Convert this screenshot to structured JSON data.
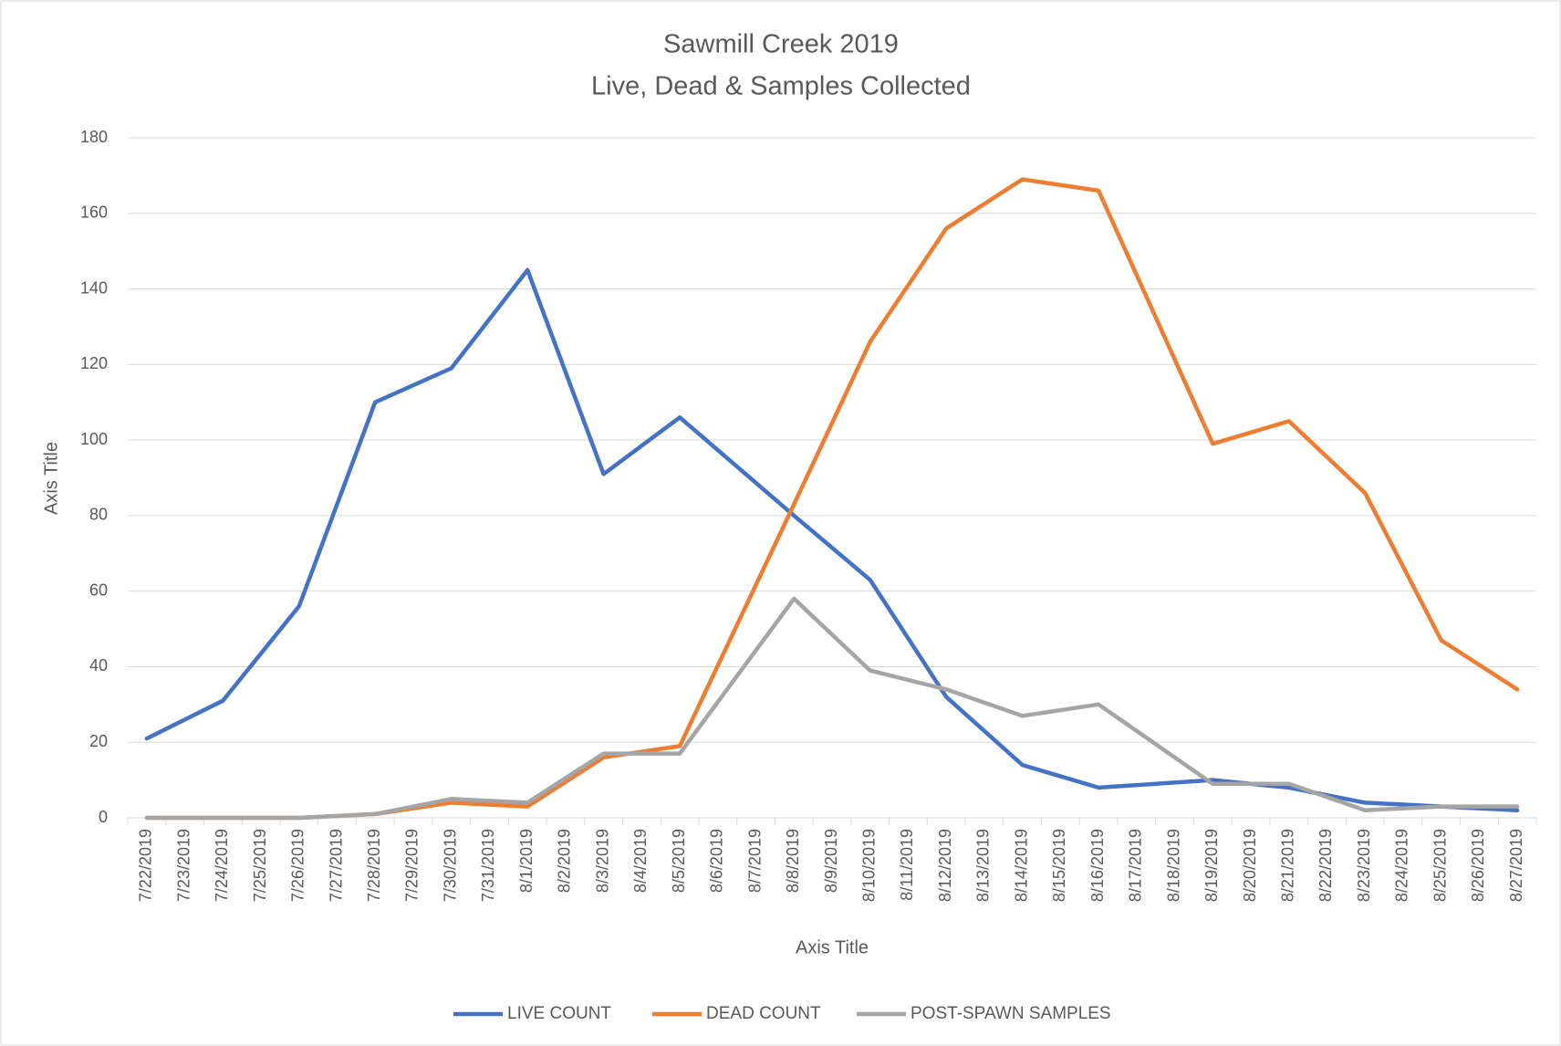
{
  "chart_data": {
    "type": "line",
    "title": "Sawmill Creek 2019",
    "subtitle": "Live, Dead & Samples Collected",
    "x_label": "Axis Title",
    "y_label": "Axis Title",
    "categories": [
      "7/22/2019",
      "7/23/2019",
      "7/24/2019",
      "7/25/2019",
      "7/26/2019",
      "7/27/2019",
      "7/28/2019",
      "7/29/2019",
      "7/30/2019",
      "7/31/2019",
      "8/1/2019",
      "8/2/2019",
      "8/3/2019",
      "8/4/2019",
      "8/5/2019",
      "8/6/2019",
      "8/7/2019",
      "8/8/2019",
      "8/9/2019",
      "8/10/2019",
      "8/11/2019",
      "8/12/2019",
      "8/13/2019",
      "8/14/2019",
      "8/15/2019",
      "8/16/2019",
      "8/17/2019",
      "8/18/2019",
      "8/19/2019",
      "8/20/2019",
      "8/21/2019",
      "8/22/2019",
      "8/23/2019",
      "8/24/2019",
      "8/25/2019",
      "8/26/2019",
      "8/27/2019"
    ],
    "series": [
      {
        "name": "LIVE COUNT",
        "color": "#4472c4",
        "x": [
          "7/22/2019",
          "7/24/2019",
          "7/26/2019",
          "7/28/2019",
          "7/30/2019",
          "8/1/2019",
          "8/3/2019",
          "8/5/2019",
          "8/8/2019",
          "8/10/2019",
          "8/12/2019",
          "8/14/2019",
          "8/16/2019",
          "8/19/2019",
          "8/21/2019",
          "8/23/2019",
          "8/25/2019",
          "8/27/2019"
        ],
        "values": [
          21,
          31,
          56,
          110,
          119,
          145,
          91,
          106,
          80,
          63,
          32,
          14,
          8,
          10,
          8,
          4,
          3,
          2
        ]
      },
      {
        "name": "DEAD COUNT",
        "color": "#ed7d31",
        "x": [
          "7/22/2019",
          "7/24/2019",
          "7/26/2019",
          "7/28/2019",
          "7/30/2019",
          "8/1/2019",
          "8/3/2019",
          "8/5/2019",
          "8/8/2019",
          "8/10/2019",
          "8/12/2019",
          "8/14/2019",
          "8/16/2019",
          "8/19/2019",
          "8/21/2019",
          "8/23/2019",
          "8/25/2019",
          "8/27/2019"
        ],
        "values": [
          0,
          0,
          0,
          1,
          4,
          3,
          16,
          19,
          83,
          126,
          156,
          169,
          166,
          99,
          105,
          86,
          47,
          34
        ]
      },
      {
        "name": "POST-SPAWN SAMPLES",
        "color": "#a5a5a5",
        "x": [
          "7/22/2019",
          "7/24/2019",
          "7/26/2019",
          "7/28/2019",
          "7/30/2019",
          "8/1/2019",
          "8/3/2019",
          "8/5/2019",
          "8/8/2019",
          "8/10/2019",
          "8/12/2019",
          "8/14/2019",
          "8/16/2019",
          "8/19/2019",
          "8/21/2019",
          "8/23/2019",
          "8/25/2019",
          "8/27/2019"
        ],
        "values": [
          0,
          0,
          0,
          1,
          5,
          4,
          17,
          17,
          58,
          39,
          34,
          27,
          30,
          9,
          9,
          2,
          3,
          3
        ]
      }
    ],
    "ylim": [
      0,
      180
    ],
    "yticks": [
      0,
      20,
      40,
      60,
      80,
      100,
      120,
      140,
      160,
      180
    ],
    "grid": true,
    "legend": "bottom"
  }
}
